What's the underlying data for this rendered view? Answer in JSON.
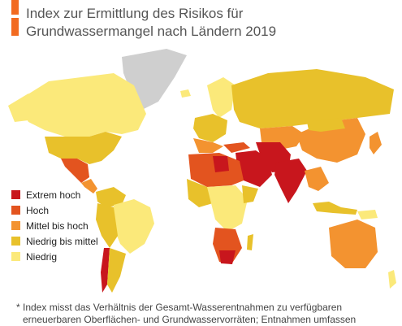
{
  "title": {
    "line1": "Index zur Ermittlung des Risikos für",
    "line2": "Grundwassermangel nach Ländern 2019"
  },
  "colors": {
    "accent": "#f26b21",
    "extrem_hoch": "#c8161d",
    "hoch": "#e3541f",
    "mittel_bis_hoch": "#f39330",
    "niedrig_bis_mittel": "#e8c12b",
    "niedrig": "#fbe97a",
    "keine_daten": "#cfcfcf",
    "ocean": "#ffffff"
  },
  "legend": [
    {
      "label": "Extrem hoch",
      "color": "#c8161d"
    },
    {
      "label": "Hoch",
      "color": "#e3541f"
    },
    {
      "label": "Mittel bis hoch",
      "color": "#f39330"
    },
    {
      "label": "Niedrig bis mittel",
      "color": "#e8c12b"
    },
    {
      "label": "Niedrig",
      "color": "#fbe97a"
    }
  ],
  "footnote": {
    "line1": "* Index misst das Verhältnis der Gesamt-Wasserentnahmen zu verfügbaren",
    "line2": "erneuerbaren Oberflächen- und Grundwasservorräten; Entnahmen umfassen"
  }
}
